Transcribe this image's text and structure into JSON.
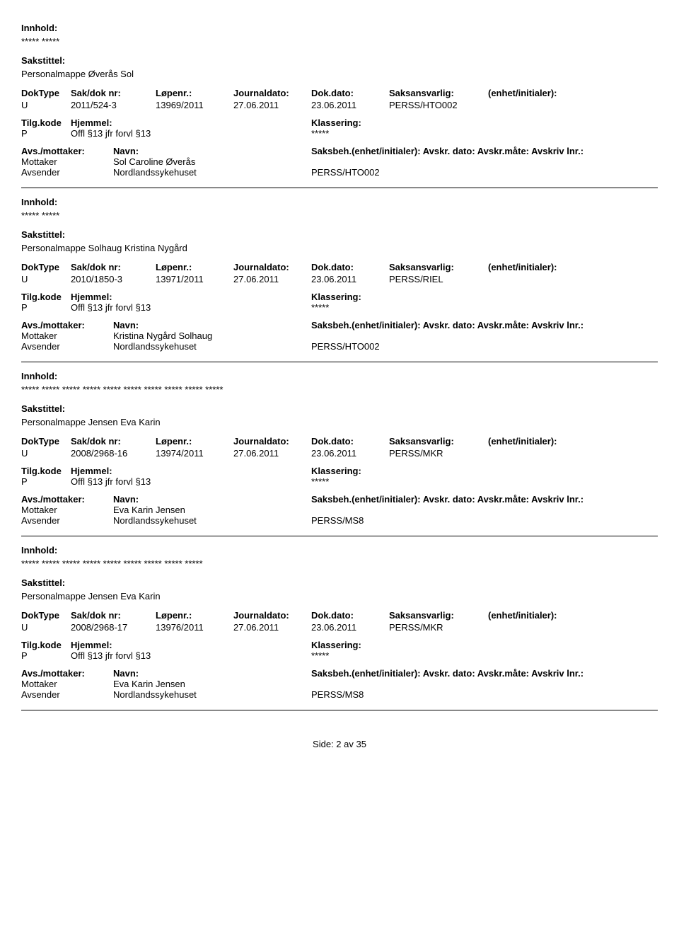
{
  "labels": {
    "innhold": "Innhold:",
    "sakstittel": "Sakstittel:",
    "doktype": "DokType",
    "sakdok": "Sak/dok nr:",
    "lopenr": "Løpenr.:",
    "journaldato": "Journaldato:",
    "dokdato": "Dok.dato:",
    "saksansvarlig": "Saksansvarlig:",
    "enhet": "(enhet/initialer):",
    "tilgkode": "Tilg.kode",
    "hjemmel": "Hjemmel:",
    "klassering": "Klassering:",
    "avsmottaker": "Avs./mottaker:",
    "navn": "Navn:",
    "saksbeh": "Saksbeh.(enhet/initialer): Avskr. dato:  Avskr.måte:  Avskriv lnr.:"
  },
  "entries": [
    {
      "innhold": "***** *****",
      "sakstittel": "Personalmappe Øverås Sol",
      "doktype": "U",
      "sakdok": "2011/524-3",
      "lopenr": "13969/2011",
      "journaldato": "27.06.2011",
      "dokdato": "23.06.2011",
      "saksansvarlig": "PERSS/HTO002",
      "tilgkode": "P",
      "hjemmel": "Offl §13 jfr forvl §13",
      "klassering": "*****",
      "parties": [
        {
          "role": "Mottaker",
          "name": "Sol Caroline Øverås",
          "unit": ""
        },
        {
          "role": "Avsender",
          "name": "Nordlandssykehuset",
          "unit": "PERSS/HTO002"
        }
      ]
    },
    {
      "innhold": "***** *****",
      "sakstittel": "Personalmappe Solhaug Kristina Nygård",
      "doktype": "U",
      "sakdok": "2010/1850-3",
      "lopenr": "13971/2011",
      "journaldato": "27.06.2011",
      "dokdato": "23.06.2011",
      "saksansvarlig": "PERSS/RIEL",
      "tilgkode": "P",
      "hjemmel": "Offl §13 jfr forvl §13",
      "klassering": "*****",
      "parties": [
        {
          "role": "Mottaker",
          "name": "Kristina Nygård Solhaug",
          "unit": ""
        },
        {
          "role": "Avsender",
          "name": "Nordlandssykehuset",
          "unit": "PERSS/HTO002"
        }
      ]
    },
    {
      "innhold": "***** ***** ***** ***** ***** ***** ***** ***** ***** *****",
      "sakstittel": "Personalmappe Jensen Eva Karin",
      "doktype": "U",
      "sakdok": "2008/2968-16",
      "lopenr": "13974/2011",
      "journaldato": "27.06.2011",
      "dokdato": "23.06.2011",
      "saksansvarlig": "PERSS/MKR",
      "tilgkode": "P",
      "hjemmel": "Offl §13 jfr forvl §13",
      "klassering": "*****",
      "parties": [
        {
          "role": "Mottaker",
          "name": "Eva Karin Jensen",
          "unit": ""
        },
        {
          "role": "Avsender",
          "name": "Nordlandssykehuset",
          "unit": "PERSS/MS8"
        }
      ]
    },
    {
      "innhold": "***** ***** ***** ***** ***** ***** ***** ***** *****",
      "sakstittel": "Personalmappe Jensen Eva Karin",
      "doktype": "U",
      "sakdok": "2008/2968-17",
      "lopenr": "13976/2011",
      "journaldato": "27.06.2011",
      "dokdato": "23.06.2011",
      "saksansvarlig": "PERSS/MKR",
      "tilgkode": "P",
      "hjemmel": "Offl §13 jfr forvl §13",
      "klassering": "*****",
      "parties": [
        {
          "role": "Mottaker",
          "name": "Eva Karin Jensen",
          "unit": ""
        },
        {
          "role": "Avsender",
          "name": "Nordlandssykehuset",
          "unit": "PERSS/MS8"
        }
      ]
    }
  ],
  "footer": "Side: 2 av 35"
}
